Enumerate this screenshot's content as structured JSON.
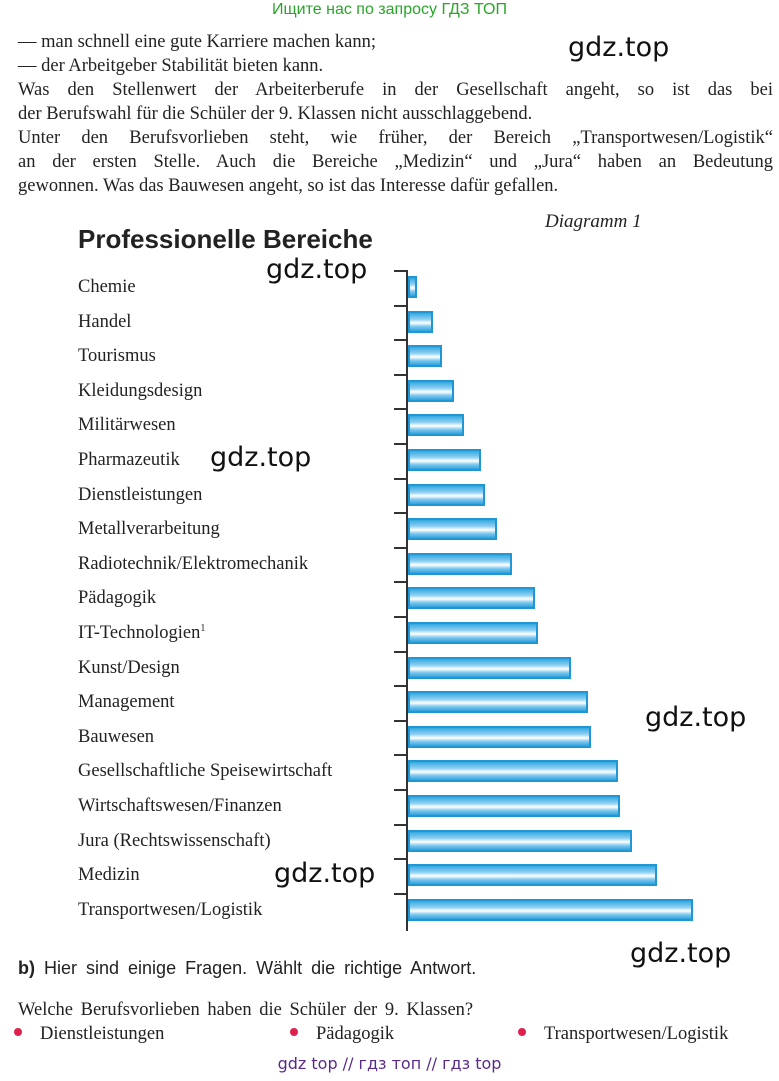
{
  "banner": "Ищите нас по запросу ГДЗ ТОП",
  "text_lines": [
    "— man schnell eine gute Karriere machen kann;",
    "— der Arbeitgeber Stabilität bieten kann.",
    "Was den Stellenwert der Arbeiterberufe in der Gesellschaft angeht, so ist das bei",
    "der Berufswahl für die Schüler der 9. Klassen nicht ausschlaggebend.",
    "Unter den Berufsvorlieben steht, wie früher, der Bereich „Transportwesen/Logistik“",
    "an der ersten Stelle. Auch die Bereiche „Medizin“ und „Jura“ haben an Bedeutung",
    "gewonnen. Was das Bauwesen angeht, so ist das Interesse dafür gefallen."
  ],
  "watermark": "gdz.top",
  "chart_data": {
    "type": "bar",
    "orientation": "horizontal",
    "title": "Professionelle Bereiche",
    "label": "Diagramm 1",
    "categories": [
      "Chemie",
      "Handel",
      "Tourismus",
      "Kleidungsdesign",
      "Militärwesen",
      "Pharmazeutik",
      "Dienstleistungen",
      "Metallverarbeitung",
      "Radiotechnik/Elektromechanik",
      "Pädagogik",
      "IT-Technologien",
      "Kunst/Design",
      "Management",
      "Bauwesen",
      "Gesellschaftliche Speisewirtschaft",
      "Wirtschaftswesen/Finanzen",
      "Jura (Rechtswissenschaft)",
      "Medizin",
      "Transportwesen/Logistik"
    ],
    "footnote_marker": {
      "category_index": 10,
      "mark": "1"
    },
    "values": [
      9,
      25,
      34,
      46,
      56,
      73,
      77,
      89,
      104,
      127,
      130,
      163,
      180,
      183,
      210,
      212,
      224,
      249,
      285
    ],
    "value_unit": "relative (no axis scale shown)",
    "xlim": [
      0,
      300
    ],
    "grid": false,
    "bar_color": "#1f97d4"
  },
  "task": {
    "label": "b)",
    "instruction": "Hier sind einige Fragen. Wählt die richtige Antwort.",
    "question": "Welche Berufsvorlieben haben die Schüler der 9. Klassen?",
    "options": [
      "Dienstleistungen",
      "Pädagogik",
      "Transportwesen/Logistik"
    ]
  },
  "footer": "gdz top  //  гдз топ  //  гдз top"
}
